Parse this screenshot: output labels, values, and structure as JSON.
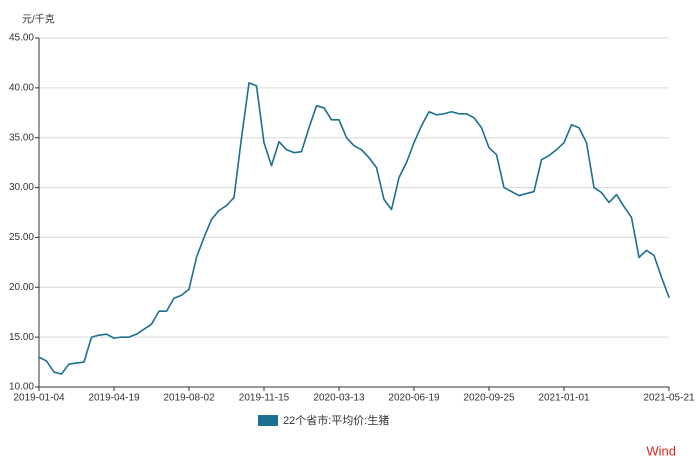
{
  "chart_data": {
    "type": "line",
    "y_unit": "元/千克",
    "categories": [
      "2019-01-04",
      null,
      null,
      null,
      null,
      null,
      null,
      null,
      null,
      null,
      "2019-04-19",
      null,
      null,
      null,
      null,
      null,
      null,
      null,
      null,
      null,
      "2019-08-02",
      null,
      null,
      null,
      null,
      null,
      null,
      null,
      null,
      null,
      "2019-11-15",
      null,
      null,
      null,
      null,
      null,
      null,
      null,
      null,
      null,
      "2020-03-13",
      null,
      null,
      null,
      null,
      null,
      null,
      null,
      null,
      null,
      "2020-06-19",
      null,
      null,
      null,
      null,
      null,
      null,
      null,
      null,
      null,
      "2020-09-25",
      null,
      null,
      null,
      null,
      null,
      null,
      null,
      null,
      null,
      "2021-01-01",
      null,
      null,
      null,
      null,
      null,
      null,
      null,
      null,
      null,
      null,
      null,
      null,
      null,
      "2021-05-21"
    ],
    "series": [
      {
        "name": "22个省市:平均价:生猪",
        "color": "#1b6f91",
        "values": [
          13.0,
          12.6,
          11.5,
          11.3,
          12.3,
          12.4,
          12.5,
          15.0,
          15.2,
          15.3,
          14.9,
          15.0,
          15.0,
          15.3,
          15.8,
          16.3,
          17.6,
          17.6,
          18.9,
          19.2,
          19.8,
          23.0,
          25.0,
          26.8,
          27.7,
          28.2,
          29.0,
          35.0,
          40.5,
          40.2,
          34.5,
          32.2,
          34.6,
          33.8,
          33.5,
          33.6,
          36.0,
          38.2,
          38.0,
          36.8,
          36.8,
          35.0,
          34.2,
          33.8,
          33.0,
          32.0,
          28.8,
          27.8,
          31.0,
          32.5,
          34.5,
          36.2,
          37.6,
          37.3,
          37.4,
          37.6,
          37.4,
          37.4,
          37.0,
          36.0,
          34.0,
          33.3,
          30.0,
          29.6,
          29.2,
          29.4,
          29.6,
          32.8,
          33.2,
          33.8,
          34.5,
          36.3,
          36.0,
          34.5,
          30.0,
          29.5,
          28.5,
          29.3,
          28.1,
          27.0,
          23.0,
          23.7,
          23.2,
          21.0,
          19.0
        ]
      }
    ],
    "ylim": [
      10,
      45
    ],
    "yticks": [
      {
        "value": 10,
        "label": "10.00"
      },
      {
        "value": 15,
        "label": "15.00"
      },
      {
        "value": 20,
        "label": "20.00"
      },
      {
        "value": 25,
        "label": "25.00"
      },
      {
        "value": 30,
        "label": "30.00"
      },
      {
        "value": 35,
        "label": "35.00"
      },
      {
        "value": 40,
        "label": "40.00"
      },
      {
        "value": 45,
        "label": "45.00"
      }
    ],
    "grid": true,
    "legend": "bottom",
    "watermark": "Wind"
  }
}
